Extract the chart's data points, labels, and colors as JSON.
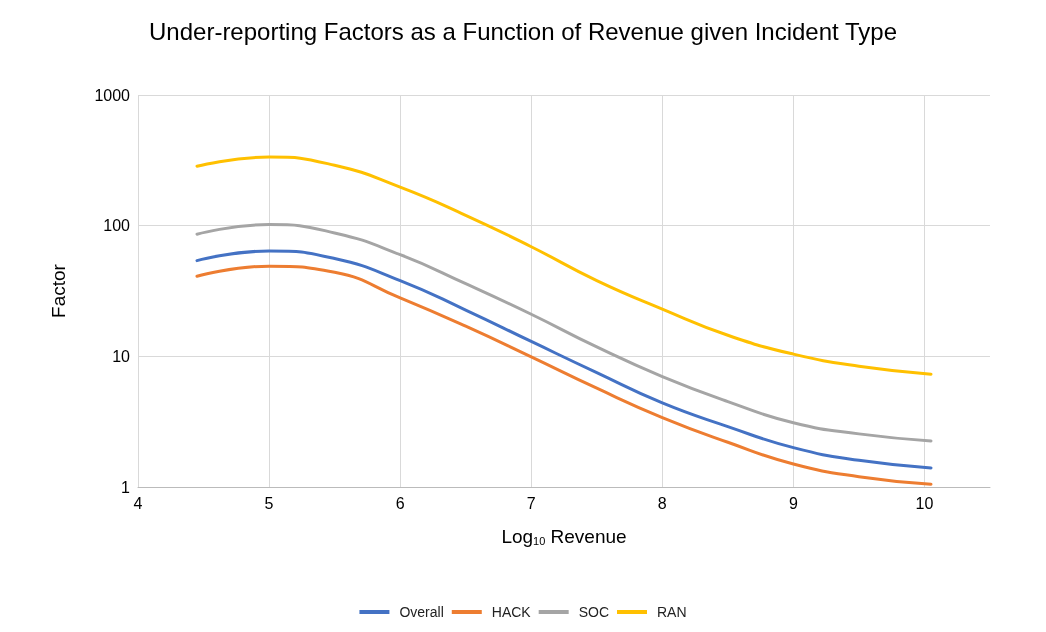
{
  "chart_data": {
    "type": "line",
    "title": "Under-reporting Factors as a Function of Revenue given Incident Type",
    "xlabel": "Log$_{10}$ Revenue",
    "ylabel": "Factor",
    "x": [
      4.45,
      5,
      5.5,
      6,
      6.5,
      7,
      7.5,
      8,
      8.5,
      9,
      9.5,
      10.05
    ],
    "series": [
      {
        "name": "Overall",
        "color": "#4472c4",
        "values": [
          54,
          64,
          56,
          38,
          22.6,
          13,
          7.5,
          4.4,
          2.9,
          2.0,
          1.6,
          1.4
        ]
      },
      {
        "name": "HACK",
        "color": "#ed7d31",
        "values": [
          41,
          49,
          44,
          28,
          17,
          9.9,
          5.7,
          3.4,
          2.2,
          1.5,
          1.2,
          1.05
        ]
      },
      {
        "name": "SOC",
        "color": "#a5a5a5",
        "values": [
          86,
          102,
          88,
          60,
          36,
          21,
          11.8,
          7,
          4.5,
          3.1,
          2.55,
          2.25
        ]
      },
      {
        "name": "RAN",
        "color": "#ffc000",
        "values": [
          285,
          335,
          290,
          197,
          120,
          69,
          38,
          23,
          14.5,
          10.4,
          8.4,
          7.3
        ]
      }
    ],
    "xlim": [
      4,
      10.5
    ],
    "xticks": [
      4,
      5,
      6,
      7,
      8,
      9,
      10
    ],
    "ylim": [
      1,
      1000
    ],
    "yticks": [
      1,
      10,
      100,
      1000
    ],
    "log": "y",
    "grid": true,
    "legend": "bottom",
    "marker": "none",
    "line_style": "solid"
  }
}
